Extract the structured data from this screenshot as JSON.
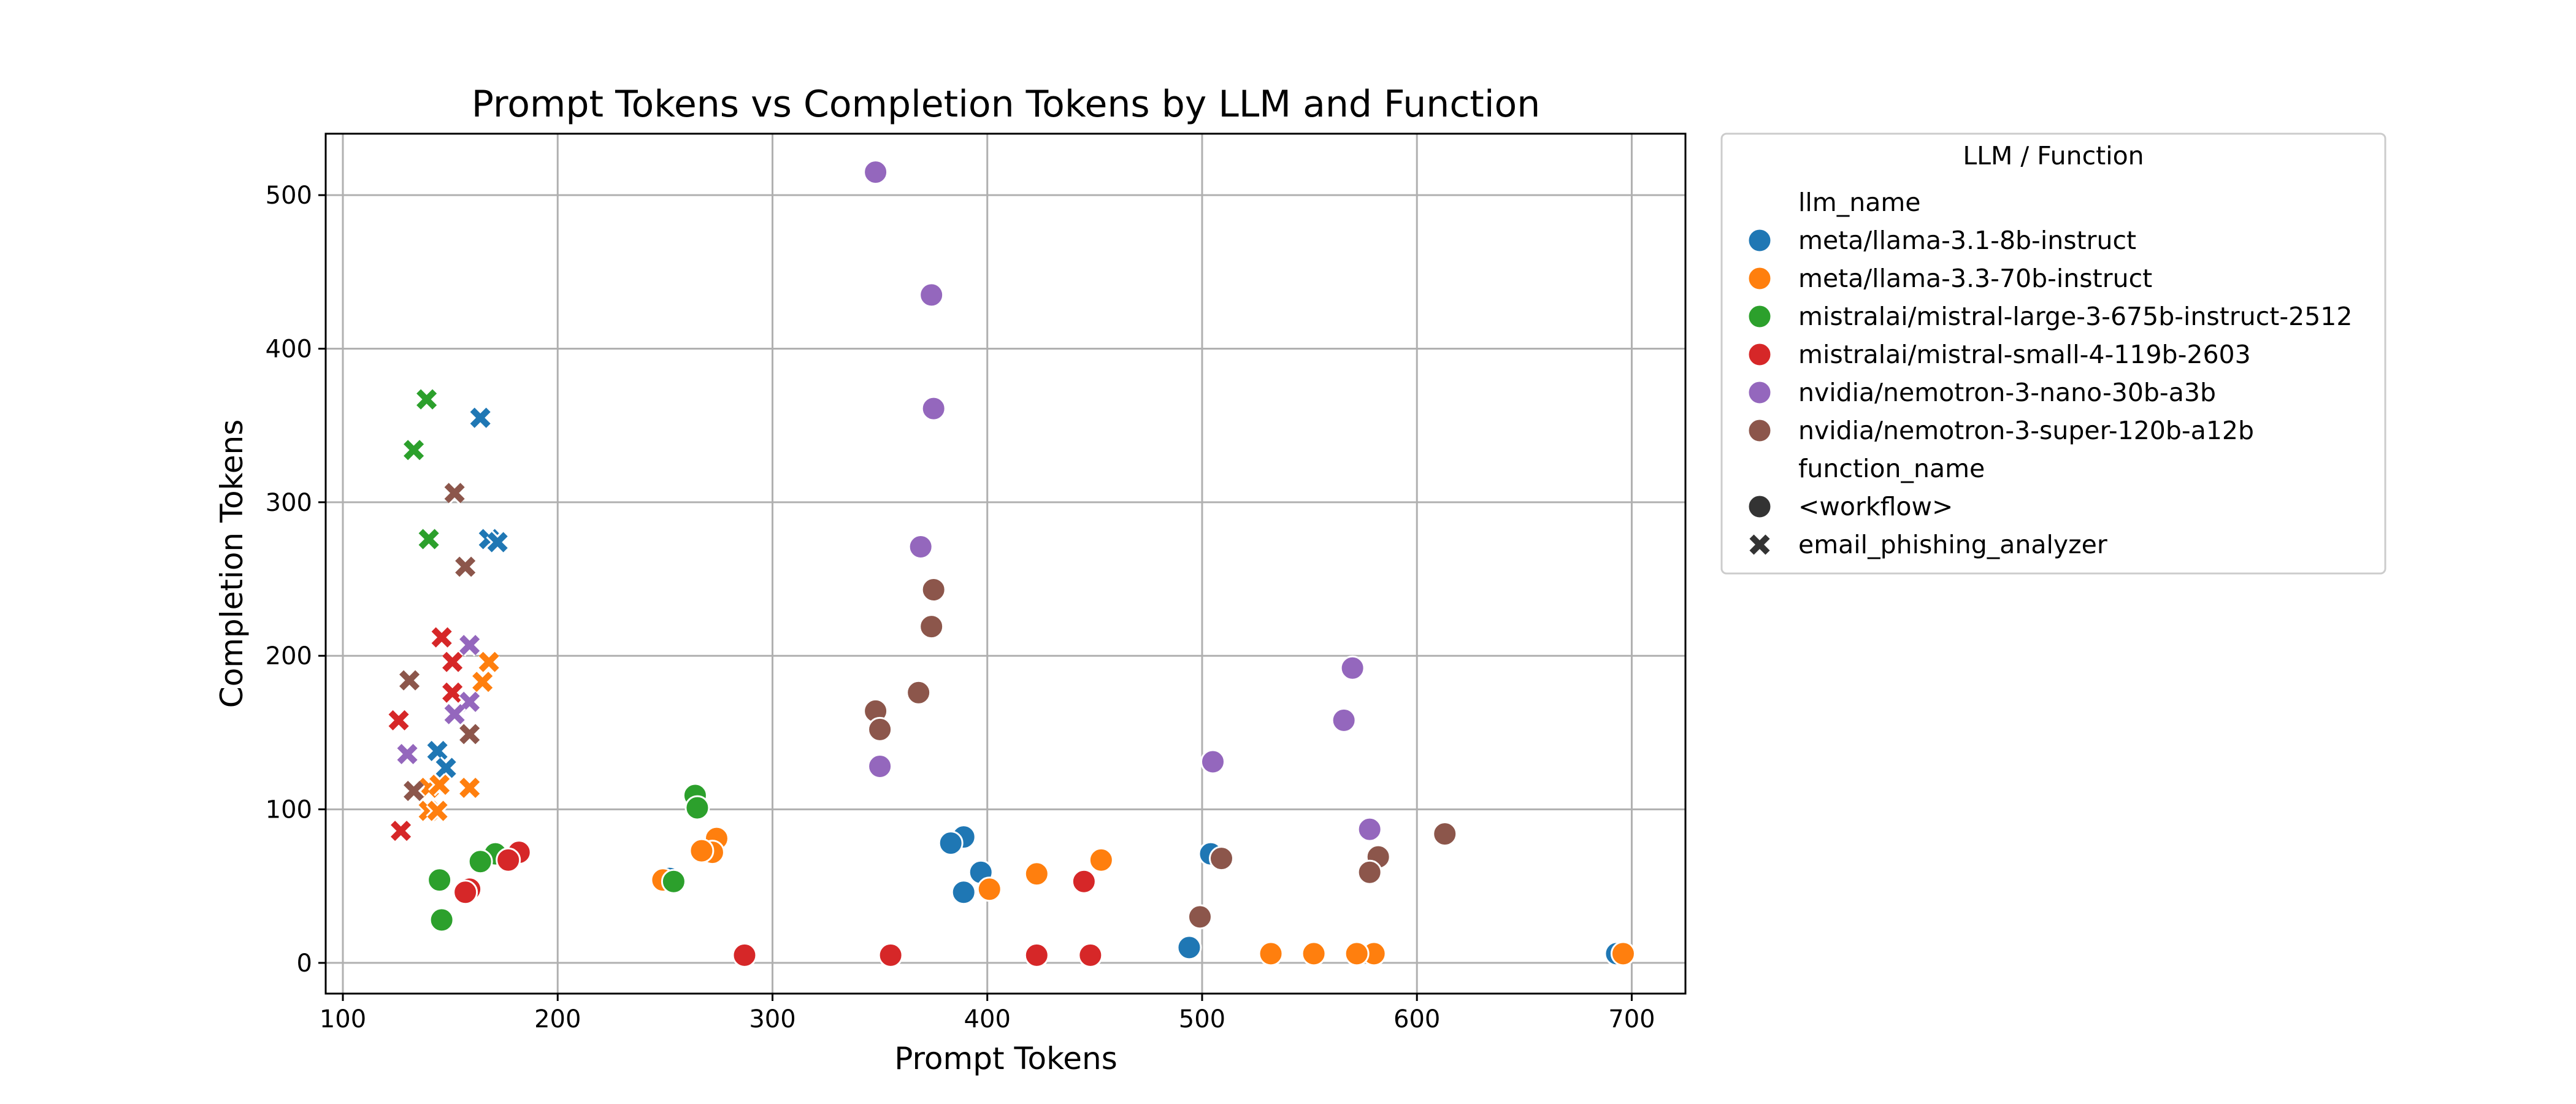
{
  "chart_data": {
    "type": "scatter",
    "title": "Prompt Tokens vs Completion Tokens by LLM and Function",
    "xlabel": "Prompt Tokens",
    "ylabel": "Completion Tokens",
    "xlim": [
      92,
      725
    ],
    "ylim": [
      -20,
      540
    ],
    "xticks": [
      100,
      200,
      300,
      400,
      500,
      600,
      700
    ],
    "yticks": [
      0,
      100,
      200,
      300,
      400,
      500
    ],
    "grid": true,
    "legend": {
      "title": "LLM / Function",
      "placement": "outside-right",
      "hue_header": "llm_name",
      "style_header": "function_name"
    },
    "series": [
      {
        "name": "meta/llama-3.1-8b-instruct",
        "color": "#1f77b4",
        "points": [
          {
            "x": 693,
            "y": 6,
            "f": "workflow"
          },
          {
            "x": 494,
            "y": 10,
            "f": "workflow"
          },
          {
            "x": 504,
            "y": 71,
            "f": "workflow"
          },
          {
            "x": 389,
            "y": 82,
            "f": "workflow"
          },
          {
            "x": 383,
            "y": 78,
            "f": "workflow"
          },
          {
            "x": 397,
            "y": 59,
            "f": "workflow"
          },
          {
            "x": 389,
            "y": 46,
            "f": "workflow"
          },
          {
            "x": 252,
            "y": 55,
            "f": "workflow"
          },
          {
            "x": 164,
            "y": 355,
            "f": "email"
          },
          {
            "x": 168,
            "y": 276,
            "f": "email"
          },
          {
            "x": 172,
            "y": 274,
            "f": "email"
          },
          {
            "x": 144,
            "y": 138,
            "f": "email"
          },
          {
            "x": 148,
            "y": 127,
            "f": "email"
          }
        ]
      },
      {
        "name": "meta/llama-3.3-70b-instruct",
        "color": "#ff7f0e",
        "points": [
          {
            "x": 696,
            "y": 6,
            "f": "workflow"
          },
          {
            "x": 580,
            "y": 6,
            "f": "workflow"
          },
          {
            "x": 572,
            "y": 6,
            "f": "workflow"
          },
          {
            "x": 552,
            "y": 6,
            "f": "workflow"
          },
          {
            "x": 532,
            "y": 6,
            "f": "workflow"
          },
          {
            "x": 453,
            "y": 67,
            "f": "workflow"
          },
          {
            "x": 423,
            "y": 58,
            "f": "workflow"
          },
          {
            "x": 401,
            "y": 48,
            "f": "workflow"
          },
          {
            "x": 274,
            "y": 81,
            "f": "workflow"
          },
          {
            "x": 272,
            "y": 72,
            "f": "workflow"
          },
          {
            "x": 267,
            "y": 73,
            "f": "workflow"
          },
          {
            "x": 249,
            "y": 54,
            "f": "workflow"
          },
          {
            "x": 168,
            "y": 196,
            "f": "email"
          },
          {
            "x": 165,
            "y": 183,
            "f": "email"
          },
          {
            "x": 159,
            "y": 114,
            "f": "email"
          },
          {
            "x": 140,
            "y": 99,
            "f": "email"
          },
          {
            "x": 144,
            "y": 99,
            "f": "email"
          },
          {
            "x": 140,
            "y": 114,
            "f": "email"
          },
          {
            "x": 145,
            "y": 116,
            "f": "email"
          }
        ]
      },
      {
        "name": "mistralai/mistral-large-3-675b-instruct-2512",
        "color": "#2ca02c",
        "points": [
          {
            "x": 264,
            "y": 109,
            "f": "workflow"
          },
          {
            "x": 265,
            "y": 101,
            "f": "workflow"
          },
          {
            "x": 254,
            "y": 53,
            "f": "workflow"
          },
          {
            "x": 171,
            "y": 71,
            "f": "workflow"
          },
          {
            "x": 164,
            "y": 66,
            "f": "workflow"
          },
          {
            "x": 145,
            "y": 54,
            "f": "workflow"
          },
          {
            "x": 146,
            "y": 28,
            "f": "workflow"
          },
          {
            "x": 139,
            "y": 367,
            "f": "email"
          },
          {
            "x": 133,
            "y": 334,
            "f": "email"
          },
          {
            "x": 140,
            "y": 276,
            "f": "email"
          }
        ]
      },
      {
        "name": "mistralai/mistral-small-4-119b-2603",
        "color": "#d62728",
        "points": [
          {
            "x": 287,
            "y": 5,
            "f": "workflow"
          },
          {
            "x": 355,
            "y": 5,
            "f": "workflow"
          },
          {
            "x": 423,
            "y": 5,
            "f": "workflow"
          },
          {
            "x": 448,
            "y": 5,
            "f": "workflow"
          },
          {
            "x": 445,
            "y": 53,
            "f": "workflow"
          },
          {
            "x": 182,
            "y": 72,
            "f": "workflow"
          },
          {
            "x": 177,
            "y": 67,
            "f": "workflow"
          },
          {
            "x": 159,
            "y": 48,
            "f": "workflow"
          },
          {
            "x": 157,
            "y": 46,
            "f": "workflow"
          },
          {
            "x": 146,
            "y": 212,
            "f": "email"
          },
          {
            "x": 151,
            "y": 196,
            "f": "email"
          },
          {
            "x": 151,
            "y": 176,
            "f": "email"
          },
          {
            "x": 126,
            "y": 158,
            "f": "email"
          },
          {
            "x": 127,
            "y": 86,
            "f": "email"
          }
        ]
      },
      {
        "name": "nvidia/nemotron-3-nano-30b-a3b",
        "color": "#9467bd",
        "points": [
          {
            "x": 348,
            "y": 515,
            "f": "workflow"
          },
          {
            "x": 374,
            "y": 435,
            "f": "workflow"
          },
          {
            "x": 375,
            "y": 361,
            "f": "workflow"
          },
          {
            "x": 369,
            "y": 271,
            "f": "workflow"
          },
          {
            "x": 350,
            "y": 128,
            "f": "workflow"
          },
          {
            "x": 570,
            "y": 192,
            "f": "workflow"
          },
          {
            "x": 566,
            "y": 158,
            "f": "workflow"
          },
          {
            "x": 505,
            "y": 131,
            "f": "workflow"
          },
          {
            "x": 578,
            "y": 87,
            "f": "workflow"
          },
          {
            "x": 159,
            "y": 207,
            "f": "email"
          },
          {
            "x": 159,
            "y": 170,
            "f": "email"
          },
          {
            "x": 152,
            "y": 162,
            "f": "email"
          },
          {
            "x": 130,
            "y": 136,
            "f": "email"
          }
        ]
      },
      {
        "name": "nvidia/nemotron-3-super-120b-a12b",
        "color": "#8c564b",
        "points": [
          {
            "x": 375,
            "y": 243,
            "f": "workflow"
          },
          {
            "x": 374,
            "y": 219,
            "f": "workflow"
          },
          {
            "x": 368,
            "y": 176,
            "f": "workflow"
          },
          {
            "x": 348,
            "y": 164,
            "f": "workflow"
          },
          {
            "x": 350,
            "y": 152,
            "f": "workflow"
          },
          {
            "x": 613,
            "y": 84,
            "f": "workflow"
          },
          {
            "x": 582,
            "y": 69,
            "f": "workflow"
          },
          {
            "x": 578,
            "y": 59,
            "f": "workflow"
          },
          {
            "x": 509,
            "y": 68,
            "f": "workflow"
          },
          {
            "x": 499,
            "y": 30,
            "f": "workflow"
          },
          {
            "x": 152,
            "y": 306,
            "f": "email"
          },
          {
            "x": 157,
            "y": 258,
            "f": "email"
          },
          {
            "x": 131,
            "y": 184,
            "f": "email"
          },
          {
            "x": 159,
            "y": 149,
            "f": "email"
          },
          {
            "x": 133,
            "y": 112,
            "f": "email"
          }
        ]
      }
    ],
    "styles": [
      {
        "key": "workflow",
        "label": "<workflow>",
        "marker": "circle"
      },
      {
        "key": "email",
        "label": "email_phishing_analyzer",
        "marker": "x"
      }
    ]
  }
}
